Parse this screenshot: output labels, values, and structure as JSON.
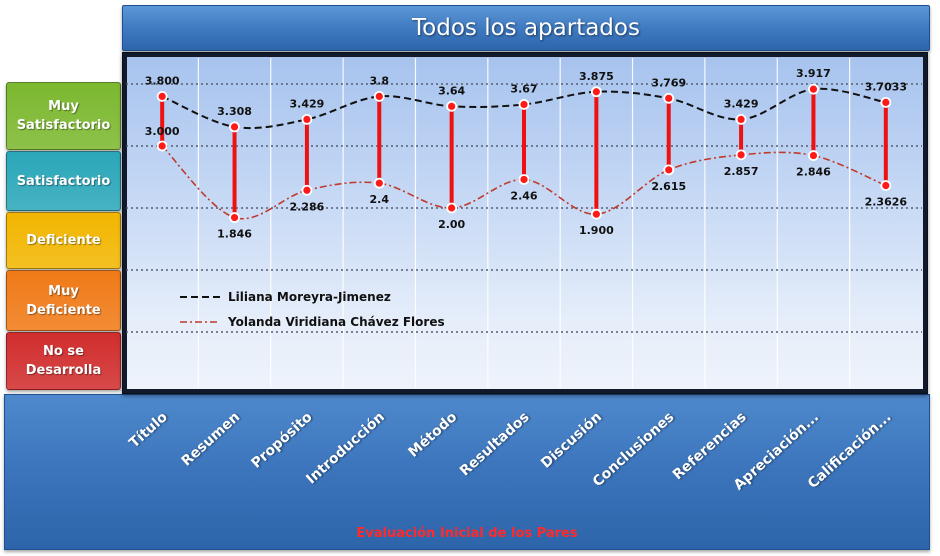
{
  "chart_data": {
    "type": "line",
    "title": "Todos los apartados",
    "footer": "Evaluación Inicial de los Pares",
    "categories": [
      "Título",
      "Resumen",
      "Propósito",
      "Introducción",
      "Método",
      "Resultados",
      "Discusión",
      "Conclusiones",
      "Referencias",
      "Apreciación...",
      "Calificación..."
    ],
    "ylim": [
      1,
      4
    ],
    "y_levels": [
      {
        "label": "Muy\nSatisfactorio",
        "color": "#7cb82f"
      },
      {
        "label": "Satisfactorio",
        "color": "#2aa7b9"
      },
      {
        "label": "Deficiente",
        "color": "#f2b600"
      },
      {
        "label": "Muy\nDeficiente",
        "color": "#f07a17"
      },
      {
        "label": "No se\nDesarrolla",
        "color": "#d12d2d"
      }
    ],
    "legend_position": "bottom-left",
    "series": [
      {
        "name": "Liliana Moreyra-Jimenez",
        "values": [
          3.8,
          3.308,
          3.429,
          3.8,
          3.64,
          3.67,
          3.875,
          3.769,
          3.429,
          3.917,
          3.7033
        ],
        "labels": [
          "3.800",
          "3.308",
          "3.429",
          "3.8",
          "3.64",
          "3.67",
          "3.875",
          "3.769",
          "3.429",
          "3.917",
          "3.7033"
        ],
        "color": "#111111"
      },
      {
        "name": "Yolanda Viridiana Chávez Flores",
        "values": [
          3.0,
          1.846,
          2.286,
          2.4,
          2.0,
          2.46,
          1.9,
          2.615,
          2.857,
          2.846,
          2.3626
        ],
        "labels": [
          "3.000",
          "1.846",
          "2.286",
          "2.4",
          "2.00",
          "2.46",
          "1.900",
          "2.615",
          "2.857",
          "2.846",
          "2.3626"
        ],
        "color": "#c0392b"
      }
    ]
  }
}
